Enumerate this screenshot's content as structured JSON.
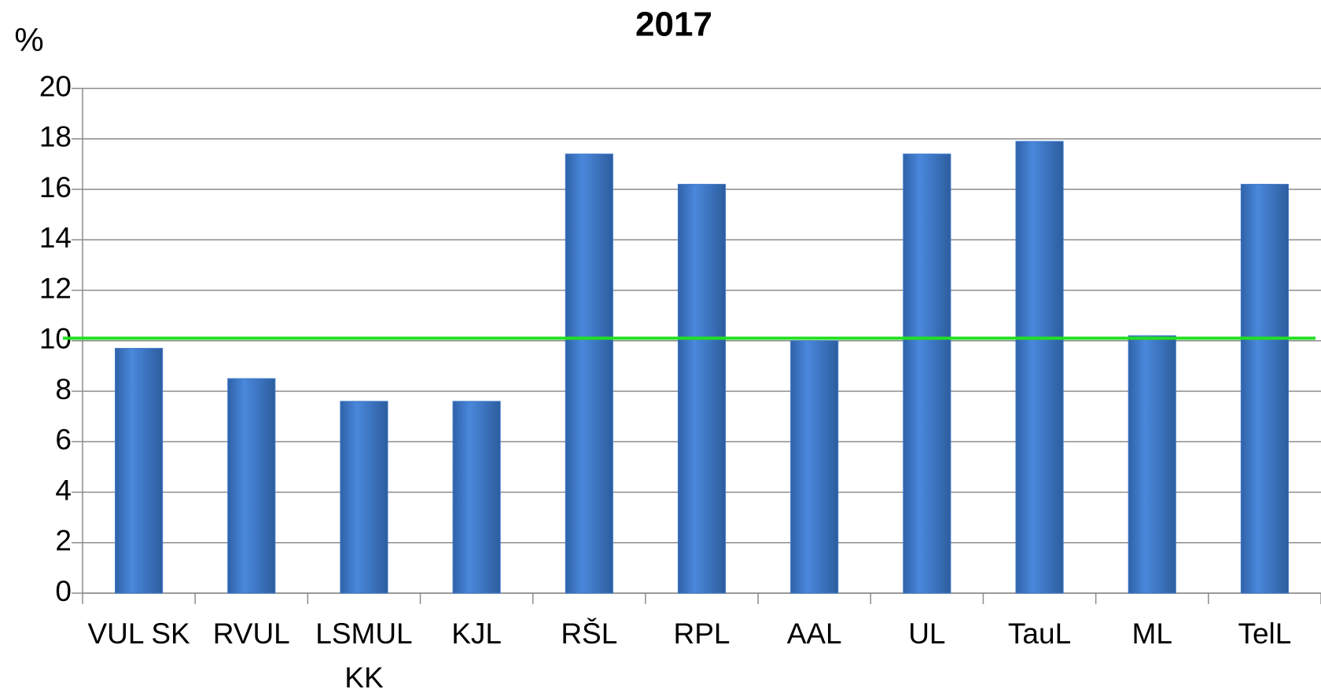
{
  "chart_data": {
    "type": "bar",
    "title": "2017",
    "y_label": "%",
    "categories": [
      "VUL SK",
      "RVUL",
      "LSMUL KK",
      "KJL",
      "RŠL",
      "RPL",
      "AAL",
      "UL",
      "TauL",
      "ML",
      "TelL"
    ],
    "values": [
      9.7,
      8.5,
      7.6,
      7.6,
      17.4,
      16.2,
      10.0,
      17.4,
      17.9,
      10.2,
      16.2
    ],
    "color": "#3c78c8",
    "ylim": [
      0,
      20
    ],
    "yticks": [
      0,
      2,
      4,
      6,
      8,
      10,
      12,
      14,
      16,
      18,
      20
    ],
    "grid": true,
    "reference_line": {
      "value": 10.1,
      "color": "#22e022"
    }
  }
}
